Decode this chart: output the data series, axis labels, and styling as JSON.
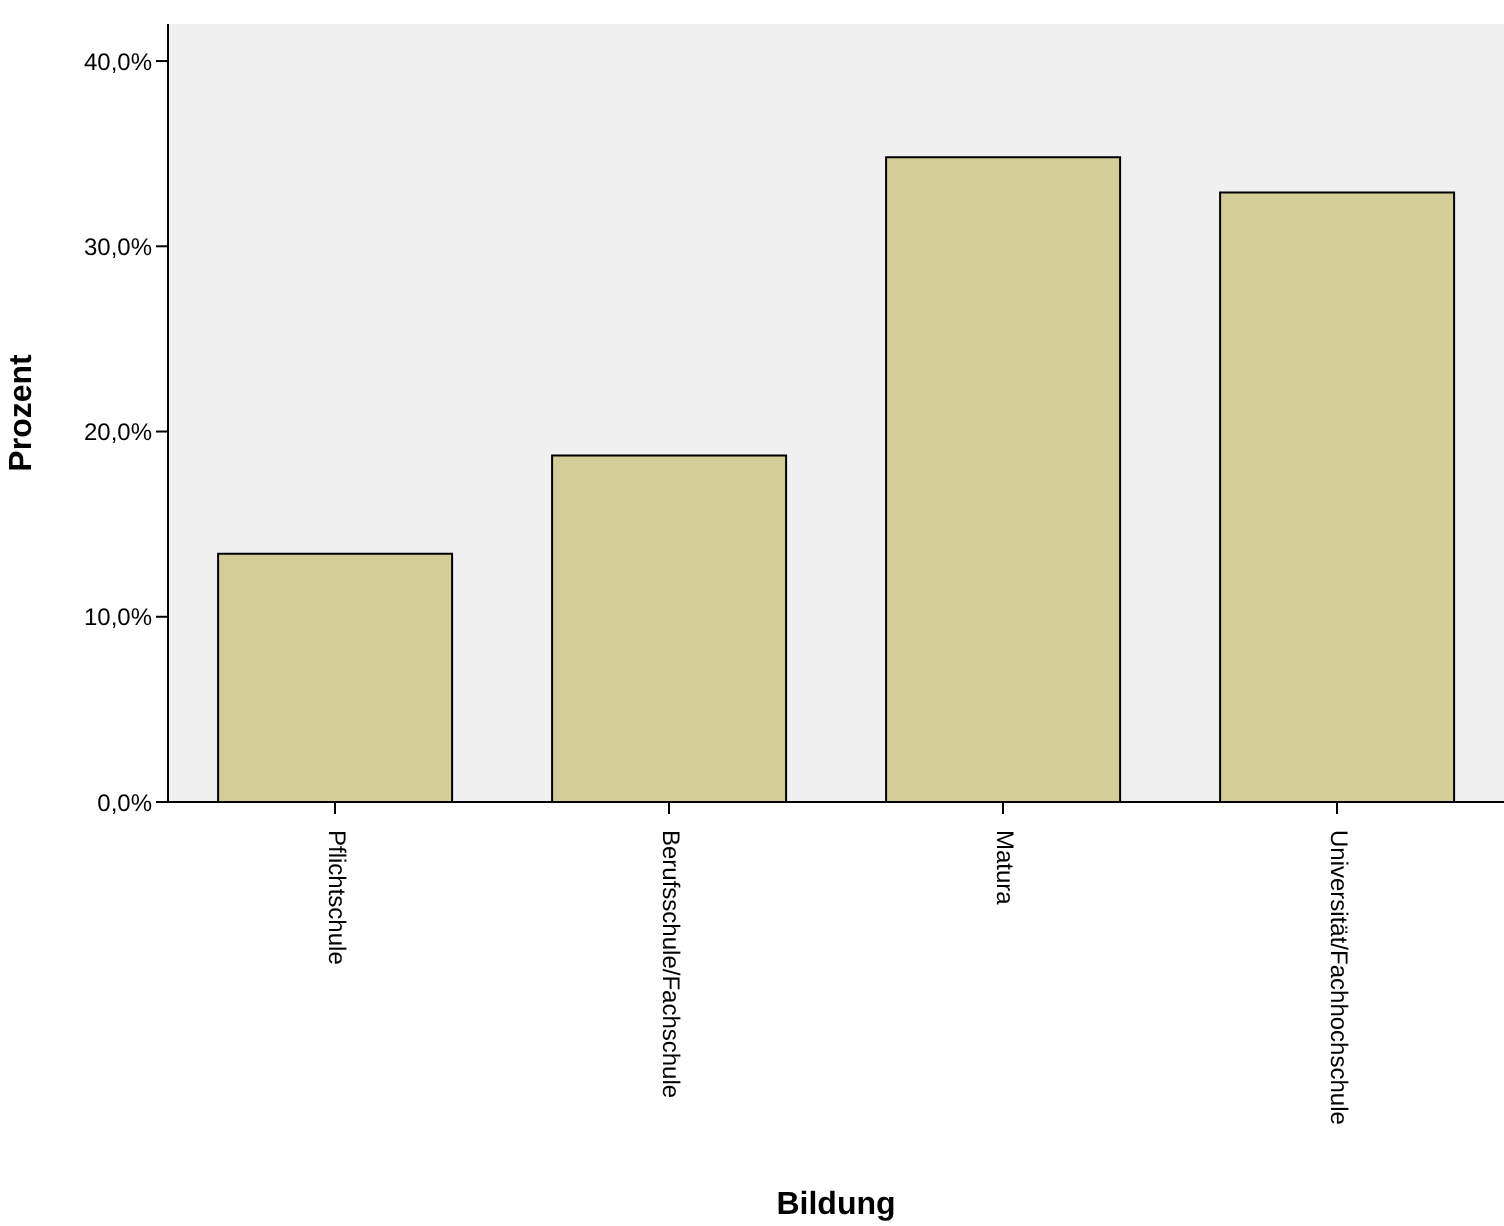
{
  "chart_data": {
    "type": "bar",
    "xlabel": "Bildung",
    "ylabel": "Prozent",
    "categories": [
      "Pflichtschule",
      "Berufsschule/Fachschule",
      "Matura",
      "Universität/Fachhochschule"
    ],
    "values": [
      13.4,
      18.7,
      34.8,
      32.9
    ],
    "color": "#d3ce97",
    "ylim": [
      0,
      42
    ],
    "yticks": [
      {
        "value": 0,
        "label": "0,0%"
      },
      {
        "value": 10,
        "label": "10,0%"
      },
      {
        "value": 20,
        "label": "20,0%"
      },
      {
        "value": 30,
        "label": "30,0%"
      },
      {
        "value": 40,
        "label": "40,0%"
      }
    ]
  }
}
